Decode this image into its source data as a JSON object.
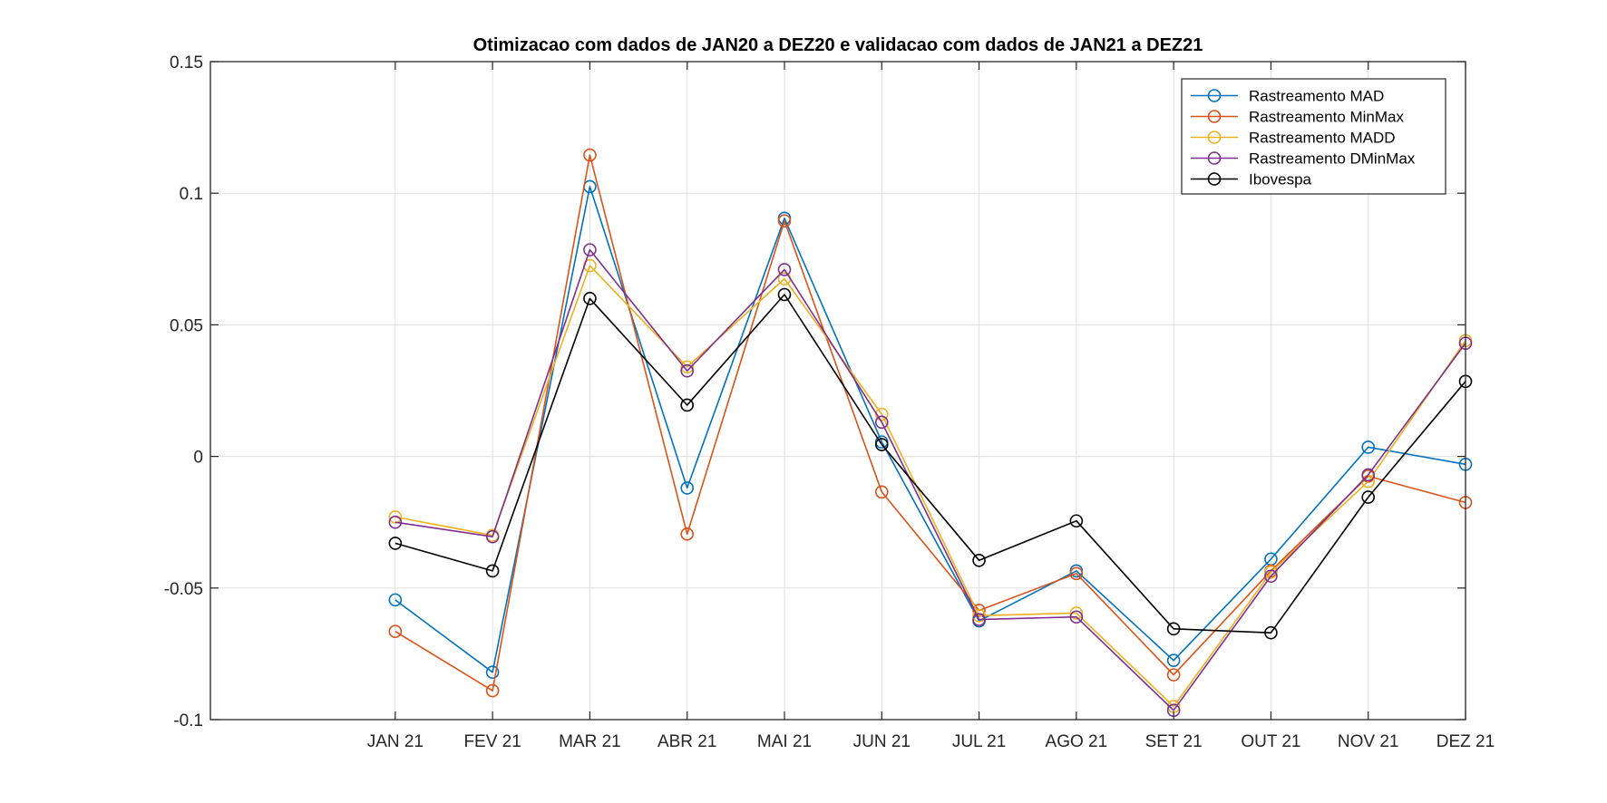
{
  "chart_data": {
    "type": "line",
    "title": "Otimizacao com dados de JAN20 a DEZ20 e validacao com dados de JAN21 a DEZ21",
    "xlabel": "",
    "ylabel": "",
    "categories": [
      "JAN 21",
      "FEV 21",
      "MAR 21",
      "ABR 21",
      "MAI 21",
      "JUN 21",
      "JUL 21",
      "AGO 21",
      "SET 21",
      "OUT 21",
      "NOV 21",
      "DEZ 21"
    ],
    "x_range": [
      -0.9,
      12
    ],
    "ylim": [
      -0.1,
      0.15
    ],
    "yticks": [
      -0.1,
      -0.05,
      0,
      0.05,
      0.1,
      0.15
    ],
    "ytick_labels": [
      "-0.1",
      "-0.05",
      "0",
      "0.05",
      "0.1",
      "0.15"
    ],
    "grid": true,
    "legend_position": "top-right",
    "marker": "circle",
    "series": [
      {
        "name": "Rastreamento MAD",
        "color": "#0072BD",
        "values": [
          -0.0545,
          -0.082,
          0.1025,
          -0.012,
          0.0905,
          0.0055,
          -0.0625,
          -0.0435,
          -0.0775,
          -0.039,
          0.0035,
          -0.003
        ]
      },
      {
        "name": "Rastreamento MinMax",
        "color": "#D95319",
        "values": [
          -0.0665,
          -0.089,
          0.1145,
          -0.0295,
          0.0895,
          -0.0135,
          -0.0585,
          -0.0445,
          -0.083,
          -0.0435,
          -0.0075,
          -0.0175
        ]
      },
      {
        "name": "Rastreamento MADD",
        "color": "#EDB120",
        "values": [
          -0.023,
          -0.03,
          0.0725,
          0.034,
          0.0675,
          0.016,
          -0.0605,
          -0.0595,
          -0.095,
          -0.044,
          -0.0095,
          0.044
        ]
      },
      {
        "name": "Rastreamento DMinMax",
        "color": "#7E2F8E",
        "values": [
          -0.025,
          -0.0305,
          0.0785,
          0.0325,
          0.071,
          0.013,
          -0.062,
          -0.061,
          -0.0965,
          -0.0455,
          -0.007,
          0.043
        ]
      },
      {
        "name": "Ibovespa",
        "color": "#000000",
        "values": [
          -0.033,
          -0.0435,
          0.06,
          0.0195,
          0.0615,
          0.0045,
          -0.0395,
          -0.0245,
          -0.0655,
          -0.067,
          -0.0155,
          0.0285
        ]
      }
    ]
  }
}
